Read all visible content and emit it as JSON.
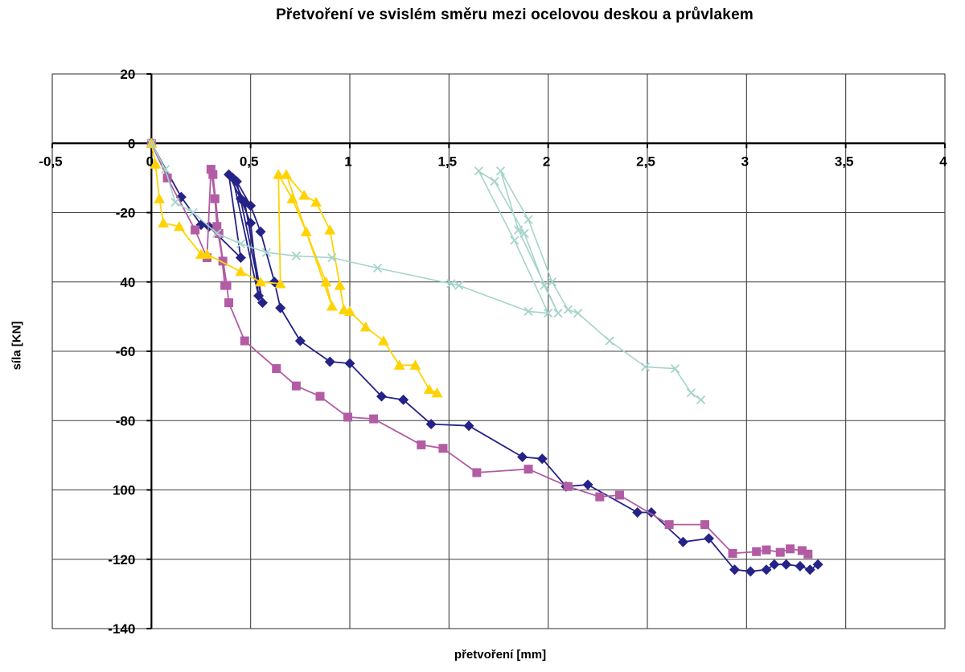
{
  "chart_data": {
    "type": "line",
    "title": "Přetvoření ve svislém směru mezi ocelovou deskou a průvlakem",
    "xlabel": "přetvoření [mm]",
    "ylabel": "síla [KN]",
    "xlim": [
      -0.5,
      4
    ],
    "ylim": [
      -140,
      20
    ],
    "grid": true,
    "legend": "none",
    "colors": {
      "gridline": "#3f3f3f",
      "axis_line": "#000000",
      "plot_border": "#a6a6a6",
      "text": "#000000",
      "background": "#ffffff"
    },
    "x_ticks": [
      {
        "label": "-0,5",
        "value": -0.5
      },
      {
        "label": "0",
        "value": 0
      },
      {
        "label": "0,5",
        "value": 0.5
      },
      {
        "label": "1",
        "value": 1
      },
      {
        "label": "1,5",
        "value": 1.5
      },
      {
        "label": "2",
        "value": 2
      },
      {
        "label": "2,5",
        "value": 2.5
      },
      {
        "label": "3",
        "value": 3
      },
      {
        "label": "3,5",
        "value": 3.5
      },
      {
        "label": "4",
        "value": 4
      }
    ],
    "y_ticks": [
      {
        "label": "20",
        "value": 20
      },
      {
        "label": "0",
        "value": 0
      },
      {
        "label": "-20",
        "value": -20
      },
      {
        "label": "40",
        "value": -40
      },
      {
        "label": "-60",
        "value": -60
      },
      {
        "label": "-80",
        "value": -80
      },
      {
        "label": "100",
        "value": -100
      },
      {
        "label": "-120",
        "value": -120
      },
      {
        "label": "-140",
        "value": -140
      }
    ],
    "series": [
      {
        "name": "navy-diamonds",
        "marker": "diamond",
        "color": "#252387",
        "line_width": 1.8,
        "points": [
          [
            0,
            0
          ],
          [
            0.15,
            -15.5
          ],
          [
            0.25,
            -23.5
          ],
          [
            0.29,
            -24
          ],
          [
            0.45,
            -33
          ],
          [
            0.39,
            -9
          ],
          [
            0.45,
            -16
          ],
          [
            0.5,
            -23
          ],
          [
            0.54,
            -44
          ],
          [
            0.41,
            -10
          ],
          [
            0.47,
            -17
          ],
          [
            0.56,
            -46
          ],
          [
            0.43,
            -11
          ],
          [
            0.5,
            -18
          ],
          [
            0.55,
            -25.5
          ],
          [
            0.62,
            -40
          ],
          [
            0.65,
            -47.5
          ],
          [
            0.75,
            -57
          ],
          [
            0.9,
            -63
          ],
          [
            1.0,
            -63.5
          ],
          [
            1.16,
            -73
          ],
          [
            1.27,
            -74
          ],
          [
            1.41,
            -81
          ],
          [
            1.6,
            -81.5
          ],
          [
            1.87,
            -90.5
          ],
          [
            1.97,
            -91
          ],
          [
            2.09,
            -99
          ],
          [
            2.2,
            -98.5
          ],
          [
            2.45,
            -106.5
          ],
          [
            2.52,
            -106.5
          ],
          [
            2.68,
            -115
          ],
          [
            2.81,
            -114
          ],
          [
            2.94,
            -123
          ],
          [
            3.02,
            -123.5
          ],
          [
            3.1,
            -123
          ],
          [
            3.14,
            -121.5
          ],
          [
            3.2,
            -121.5
          ],
          [
            3.27,
            -122
          ],
          [
            3.32,
            -123
          ],
          [
            3.36,
            -121.5
          ]
        ]
      },
      {
        "name": "pink-squares",
        "marker": "square",
        "color": "#b25ca4",
        "line_width": 1.8,
        "points": [
          [
            0,
            0
          ],
          [
            0.08,
            -10
          ],
          [
            0.22,
            -25
          ],
          [
            0.28,
            -33
          ],
          [
            0.3,
            -7.5
          ],
          [
            0.32,
            -16
          ],
          [
            0.33,
            -24
          ],
          [
            0.36,
            -34
          ],
          [
            0.37,
            -41
          ],
          [
            0.31,
            -9
          ],
          [
            0.34,
            -26
          ],
          [
            0.38,
            -41
          ],
          [
            0.39,
            -46
          ],
          [
            0.47,
            -57
          ],
          [
            0.63,
            -65
          ],
          [
            0.73,
            -70
          ],
          [
            0.85,
            -73
          ],
          [
            0.99,
            -79
          ],
          [
            1.12,
            -79.5
          ],
          [
            1.36,
            -87
          ],
          [
            1.47,
            -88
          ],
          [
            1.64,
            -95
          ],
          [
            1.9,
            -94
          ],
          [
            2.1,
            -99
          ],
          [
            2.26,
            -102
          ],
          [
            2.36,
            -101.5
          ],
          [
            2.61,
            -110
          ],
          [
            2.79,
            -110
          ],
          [
            2.93,
            -118.3
          ],
          [
            3.05,
            -117.8
          ],
          [
            3.1,
            -117.3
          ],
          [
            3.17,
            -118
          ],
          [
            3.22,
            -117
          ],
          [
            3.28,
            -117.5
          ],
          [
            3.31,
            -118.5
          ]
        ]
      },
      {
        "name": "yellow-triangles",
        "marker": "triangle",
        "color": "#ffd303",
        "line_width": 1.8,
        "points": [
          [
            0,
            0
          ],
          [
            0.02,
            -6
          ],
          [
            0.04,
            -16
          ],
          [
            0.06,
            -23
          ],
          [
            0.14,
            -24
          ],
          [
            0.25,
            -32
          ],
          [
            0.28,
            -32
          ],
          [
            0.45,
            -37
          ],
          [
            0.55,
            -40
          ],
          [
            0.65,
            -40.5
          ],
          [
            0.64,
            -9
          ],
          [
            0.71,
            -16
          ],
          [
            0.78,
            -25.5
          ],
          [
            0.88,
            -40
          ],
          [
            0.91,
            -47
          ],
          [
            0.68,
            -9
          ],
          [
            0.77,
            -15
          ],
          [
            0.83,
            -17
          ],
          [
            0.9,
            -25
          ],
          [
            0.95,
            -41
          ],
          [
            0.97,
            -48
          ],
          [
            1.0,
            -48.5
          ],
          [
            1.08,
            -53
          ],
          [
            1.17,
            -57
          ],
          [
            1.25,
            -64
          ],
          [
            1.33,
            -64
          ],
          [
            1.4,
            -71
          ],
          [
            1.44,
            -72
          ]
        ]
      },
      {
        "name": "teal-x",
        "marker": "x",
        "color": "#a6d4cc",
        "line_width": 1.6,
        "points": [
          [
            0,
            0
          ],
          [
            0.07,
            -7.5
          ],
          [
            0.12,
            -17
          ],
          [
            0.21,
            -20
          ],
          [
            0.33,
            -26
          ],
          [
            0.45,
            -29
          ],
          [
            0.58,
            -31.5
          ],
          [
            0.73,
            -32.5
          ],
          [
            0.91,
            -33
          ],
          [
            1.14,
            -36
          ],
          [
            1.51,
            -40.5
          ],
          [
            1.55,
            -41
          ],
          [
            1.9,
            -48.5
          ],
          [
            2.0,
            -49
          ],
          [
            1.83,
            -28
          ],
          [
            1.65,
            -8
          ],
          [
            1.73,
            -11
          ],
          [
            1.88,
            -26
          ],
          [
            1.98,
            -41
          ],
          [
            2.05,
            -49
          ],
          [
            1.85,
            -25
          ],
          [
            1.76,
            -8
          ],
          [
            1.9,
            -22
          ],
          [
            2.02,
            -40
          ],
          [
            2.1,
            -48
          ],
          [
            2.15,
            -49
          ],
          [
            2.31,
            -57
          ],
          [
            2.49,
            -64.5
          ],
          [
            2.64,
            -65
          ],
          [
            2.72,
            -72
          ],
          [
            2.77,
            -74
          ]
        ]
      }
    ]
  }
}
